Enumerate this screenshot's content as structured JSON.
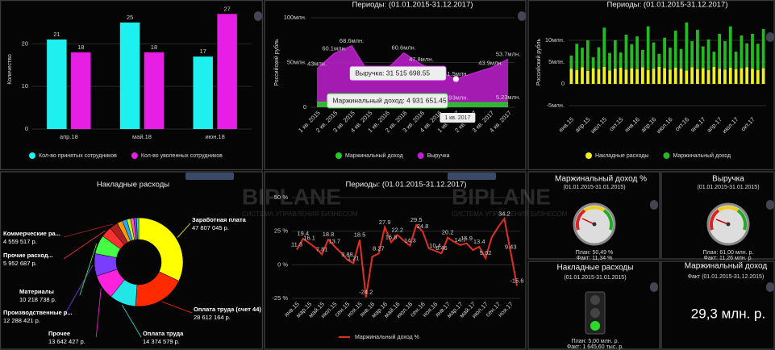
{
  "chart_data": [
    {
      "type": "bar",
      "y_label": "Количество",
      "categories": [
        "апр.18",
        "май.18",
        "июн.18"
      ],
      "series": [
        {
          "name": "Кол-во принятых сотрудников",
          "color": "#1ef0f0",
          "values": [
            21,
            25,
            17
          ]
        },
        {
          "name": "Кол-во уволенных сотрудников",
          "color": "#e61ee6",
          "values": [
            18,
            18,
            27
          ]
        }
      ],
      "ylim": [
        0,
        28
      ],
      "yticks": [
        0,
        10,
        20
      ],
      "grid": true
    },
    {
      "type": "area",
      "title": "Периоды: (01.01.2015-31.12.2017)",
      "y_label": "Российский рубль",
      "categories": [
        "1 кв. 2015",
        "2 кв. 2015",
        "3 кв. 2015",
        "4 кв. 2015",
        "1 кв. 2016",
        "2 кв. 2016",
        "3 кв. 2016",
        "4 кв. 2016",
        "1 кв. 2017",
        "2 кв. 2017",
        "3 кв. 2017",
        "4 кв. 2017"
      ],
      "series": [
        {
          "name": "Маржинальный доход",
          "color": "#22cc22",
          "values": [
            5500000,
            6000000,
            6500000,
            5000000,
            5200000,
            6200000,
            5800000,
            5400000,
            4931651.45,
            5000000,
            5100000,
            5230000
          ],
          "value_labels": [
            null,
            null,
            null,
            null,
            null,
            null,
            null,
            null,
            "4.93млн.",
            null,
            null,
            "5.23млн."
          ]
        },
        {
          "name": "Выручка",
          "color": "#c020d0",
          "values": [
            43000000,
            60100000,
            68600000,
            37600000,
            42000000,
            60600000,
            47800000,
            40000000,
            31515698.55,
            38000000,
            43900000,
            53700000
          ],
          "value_labels": [
            "43млн.",
            "60.1млн.",
            "68.6млн.",
            "37.6млн.",
            null,
            "60.6млн.",
            "47.8млн.",
            null,
            "31.5млн.",
            null,
            "43.9млн.",
            "53.7млн."
          ]
        }
      ],
      "tooltip": [
        "Выручка: 31 515 698.55",
        "Маржинальный доход: 4 931 651.45",
        "1 кв. 2017"
      ],
      "ylim": [
        0,
        100000000
      ],
      "yticks": [
        0,
        {
          "value": 50000000,
          "label": "50млн."
        },
        {
          "value": 100000000,
          "label": "100млн."
        }
      ],
      "grid": true
    },
    {
      "type": "stacked_bar",
      "title": "Периоды: (01.01.2015-31.12.2017)",
      "y_label": "Российский рубль",
      "categories": [
        "янв.15",
        null,
        null,
        "апр.15",
        null,
        null,
        "июл.15",
        null,
        null,
        "окт.15",
        null,
        null,
        "янв.16",
        null,
        null,
        "апр.16",
        null,
        null,
        "июл.16",
        null,
        null,
        "окт.16",
        null,
        null,
        "янв.17",
        null,
        null,
        "апр.17",
        null,
        null,
        "июл.17",
        null,
        null,
        "окт.17",
        null,
        null
      ],
      "series": [
        {
          "name": "Накладные расходы",
          "color": "#f0f020",
          "values": [
            3500000,
            3200000,
            3800000,
            3000000,
            3600000,
            3400000,
            3900000,
            3100000,
            3500000,
            3700000,
            3300000,
            3600000,
            3400000,
            3800000,
            3200000,
            3500000,
            3900000,
            3600000,
            3300000,
            3700000,
            3500000,
            3100000,
            3800000,
            3400000,
            3600000,
            3200000,
            3900000,
            3500000,
            3300000,
            3700000,
            3400000,
            3600000,
            3800000,
            3500000,
            3200000,
            3600000
          ]
        },
        {
          "name": "Маржинальный доход",
          "color": "#22bb22",
          "values": [
            3000000,
            6000000,
            4500000,
            7000000,
            2500000,
            5000000,
            9000000,
            4000000,
            6500000,
            3500000,
            8000000,
            5500000,
            7500000,
            4000000,
            10000000,
            6000000,
            3000000,
            7000000,
            5000000,
            8500000,
            4500000,
            11000000,
            6000000,
            9000000,
            5000000,
            7000000,
            3500000,
            8000000,
            6500000,
            9500000,
            4000000,
            7500000,
            5500000,
            8000000,
            6000000,
            9000000
          ]
        }
      ],
      "ylim": [
        -5000000,
        15000000
      ],
      "yticks": [
        {
          "value": -5000000,
          "label": "-5млн."
        },
        0,
        {
          "value": 5000000,
          "label": "5млн."
        },
        {
          "value": 10000000,
          "label": "10млн."
        }
      ],
      "grid": true
    },
    {
      "type": "donut",
      "title": "Накладные расходы",
      "categories": [
        "Заработная плата",
        "Оплата труда (счет 44)",
        "Оплата труда",
        "Прочее",
        "Производственные р...",
        "Материалы",
        "Прочие расход...",
        "Коммерческие ра...",
        null,
        null,
        null,
        null,
        null,
        null
      ],
      "values": [
        47807045,
        28612164,
        14374579,
        13642427,
        12288421,
        10218738,
        5952687,
        4559517,
        3000000,
        2500000,
        2000000,
        1800000,
        1500000,
        1200000
      ],
      "value_labels": [
        "47 807 045 р.",
        "28 612 164 р.",
        "14 374 579 р.",
        "13 642 427 р.",
        "12 288 421 р.",
        "10 218 738 р.",
        "5 952 687 р.",
        "4 559 517 р.",
        null,
        null,
        null,
        null,
        null,
        null
      ],
      "colors": [
        "#ffff00",
        "#ff2a00",
        "#22e6e6",
        "#ff22dd",
        "#7a3cff",
        "#44ff44",
        "#ff3030",
        "#aa2222",
        "#ff9900",
        "#22aaff",
        "#ccff00",
        "#ff66aa",
        "#9933ff",
        "#00ffaa"
      ]
    },
    {
      "type": "line",
      "title": "Периоды: (01.01.2015-31.12.2017)",
      "categories": [
        "янв.15",
        null,
        "мар.15",
        null,
        "май.15",
        null,
        "июл.15",
        null,
        "сен.15",
        null,
        "ноя.15",
        null,
        "янв.16",
        null,
        "мар.16",
        null,
        "май.16",
        null,
        "июл.16",
        null,
        "сен.16",
        null,
        "ноя.16",
        null,
        "янв.17",
        null,
        "мар.17",
        null,
        "май.17",
        null,
        "июл.17",
        null,
        "сен.17",
        null,
        "ноя.17",
        null
      ],
      "series": [
        {
          "name": "Маржинальный доход %",
          "color": "#e03020",
          "values": [
            11.3,
            19.4,
            16.1,
            12.5,
            7.81,
            18.8,
            13.7,
            9.2,
            3.88,
            1.21,
            18.5,
            -24.2,
            6.1,
            8.27,
            27.9,
            16.8,
            22.2,
            18.0,
            14.3,
            29.5,
            24.8,
            12.2,
            10.4,
            8.46,
            20.2,
            17.1,
            14.7,
            15.9,
            11.0,
            13.4,
            5.02,
            20.5,
            28.0,
            34.2,
            9.43,
            -15.6
          ],
          "value_labels": [
            "11.3",
            "19.4",
            "16.1",
            null,
            "7.81",
            "18.8",
            "13.7",
            null,
            "3.88",
            "1.21",
            "18.5",
            "-24.2",
            null,
            "8.27",
            "27.9",
            "16.8",
            "22.2",
            null,
            "14.3",
            "29.5",
            "24.8",
            null,
            "10.4",
            "8.46",
            "20.2",
            null,
            "14.7",
            "15.9",
            null,
            "13.4",
            "5.02",
            null,
            null,
            "34.2",
            "9.43",
            "-15.6"
          ]
        }
      ],
      "ylim": [
        -25,
        50
      ],
      "yticks": [
        {
          "value": -25,
          "label": "-25 %"
        },
        {
          "value": 0,
          "label": "0 %"
        },
        {
          "value": 25,
          "label": "25 %"
        },
        {
          "value": 50,
          "label": "50 %"
        }
      ],
      "grid": true
    }
  ],
  "widgets": [
    {
      "title": "Маржинальный доход %",
      "period": "(01.01.2015-31.01.2015)",
      "plan": "План: 50,49 %",
      "fact": "Факт: 11,34 %"
    },
    {
      "title": "Выручка",
      "period": "(01.01.2015-31.01.2015)",
      "plan": "План: 61,00 млн. р.",
      "fact": "Факт: 11,26 млн. р."
    },
    {
      "title": "Накладные расходы",
      "period": "(01.01.2015-31.01.2015)",
      "plan": "План: 5,00 млн. р.",
      "fact": "Факт: 1 645,60 тыс. р."
    },
    {
      "title": "Маржинальный доход",
      "period": "Факт (01.01.2015-31.12.2015)",
      "value": "29,3 млн. р."
    }
  ],
  "watermark": {
    "title": "BIPLANE",
    "subtitle": "СИСТЕМА УПРАВЛЕНИЯ БИЗНЕСОМ"
  }
}
